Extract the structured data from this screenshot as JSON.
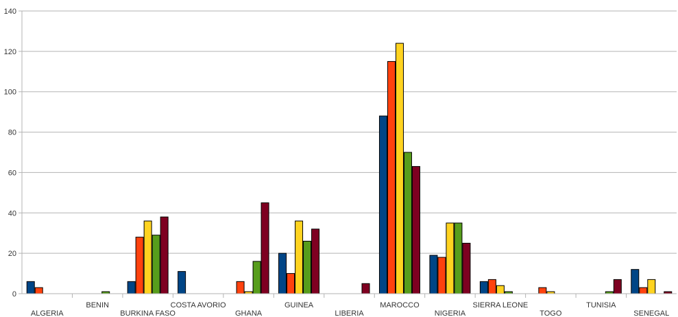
{
  "chart_data": {
    "type": "bar",
    "title": "",
    "xlabel": "",
    "ylabel": "",
    "ylim": [
      0,
      140
    ],
    "yticks": [
      0,
      20,
      40,
      60,
      80,
      100,
      120,
      140
    ],
    "grid": true,
    "legend": "none",
    "categories": [
      "ALGERIA",
      "BENIN",
      "BURKINA FASO",
      "COSTA AVORIO",
      "GHANA",
      "GUINEA",
      "LIBERIA",
      "MAROCCO",
      "NIGERIA",
      "SIERRA LEONE",
      "TOGO",
      "TUNISIA",
      "SENEGAL"
    ],
    "series": [
      {
        "color": "#004586",
        "values": [
          6,
          0,
          6,
          11,
          0,
          20,
          0,
          88,
          19,
          6,
          0,
          0,
          12
        ]
      },
      {
        "color": "#ff420e",
        "values": [
          3,
          0,
          28,
          0,
          6,
          10,
          0,
          115,
          18,
          7,
          3,
          0,
          3
        ]
      },
      {
        "color": "#ffd320",
        "values": [
          0,
          0,
          36,
          0,
          1,
          36,
          0,
          124,
          35,
          4,
          1,
          0,
          7
        ]
      },
      {
        "color": "#579d1c",
        "values": [
          0,
          1,
          29,
          0,
          16,
          26,
          0,
          70,
          35,
          1,
          0,
          1,
          0
        ]
      },
      {
        "color": "#7e0021",
        "values": [
          0,
          0,
          38,
          0,
          45,
          32,
          5,
          63,
          25,
          0,
          0,
          7,
          1
        ]
      }
    ]
  }
}
